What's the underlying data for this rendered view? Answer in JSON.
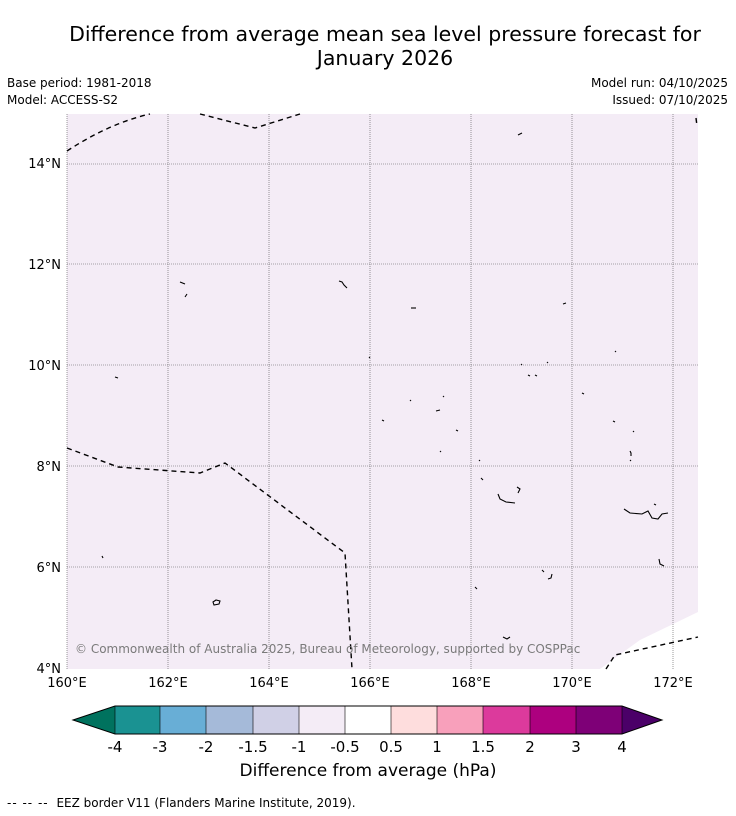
{
  "title": {
    "line1": "Difference from average mean sea level pressure forecast for",
    "line2": "January 2026"
  },
  "meta": {
    "base_period": "Base period: 1981-2018",
    "model": "Model: ACCESS-S2",
    "model_run": "Model run: 04/10/2025",
    "issued": "Issued: 07/10/2025"
  },
  "map": {
    "lat_labels": [
      "4°N",
      "6°N",
      "8°N",
      "10°N",
      "12°N",
      "14°N"
    ],
    "lon_labels": [
      "160°E",
      "162°E",
      "164°E",
      "166°E",
      "168°E",
      "170°E",
      "172°E"
    ],
    "credit": "© Commonwealth of Australia 2025, Bureau of Meteorology, supported by COSPPac",
    "fill_color": "#f4ecf6"
  },
  "colorbar": {
    "label": "Difference from average (hPa)",
    "tick_labels": [
      "-4",
      "-3",
      "-2",
      "-1.5",
      "-1",
      "-0.5",
      "0.5",
      "1",
      "1.5",
      "2",
      "3",
      "4"
    ],
    "low_color": "#00725e",
    "high_color": "#4b0068",
    "colors": [
      "#1a9292",
      "#68aed6",
      "#a5bad9",
      "#d0d0e6",
      "#f4ecf6",
      "#ffffff",
      "#fedddd",
      "#f8a0bb",
      "#dc3a9c",
      "#ad007f",
      "#7e0077"
    ]
  },
  "footnote": {
    "dashes": "-- -- --",
    "text": "EEZ border V11 (Flanders Marine Institute, 2019)."
  }
}
